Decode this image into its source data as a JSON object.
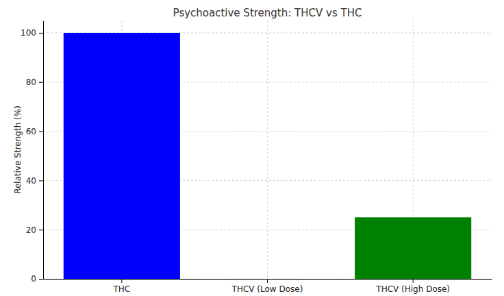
{
  "chart_data": {
    "type": "bar",
    "title": "Psychoactive Strength: THCV vs THC",
    "y_label": "Relative Strength (%)",
    "categories": [
      "THC",
      "THCV (Low Dose)",
      "THCV (High Dose)"
    ],
    "values": [
      100,
      0,
      25
    ],
    "colors": [
      "blue",
      "orange",
      "green"
    ],
    "ylim": [
      0,
      105
    ],
    "yticks": [
      0,
      20,
      40,
      60,
      80,
      100
    ],
    "grid": true
  }
}
